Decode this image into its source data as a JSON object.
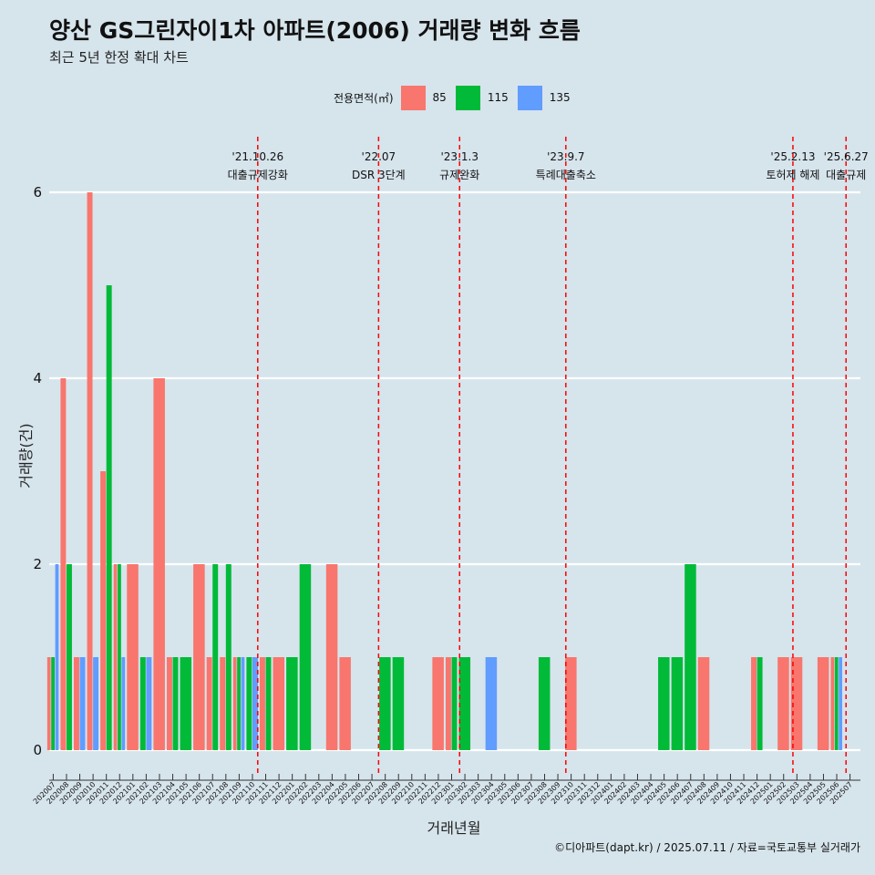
{
  "header": {
    "title": "양산 GS그린자이1차 아파트(2006) 거래량 변화 흐름",
    "subtitle": "최근 5년 한정 확대 차트"
  },
  "legend": {
    "title": "전용면적(㎡)",
    "items": [
      {
        "label": "85",
        "color": "#F8766D"
      },
      {
        "label": "115",
        "color": "#00BA38"
      },
      {
        "label": "135",
        "color": "#619CFF"
      }
    ]
  },
  "caption": "©디아파트(dapt.kr) / 2025.07.11 / 자료=국토교통부 실거래가",
  "chart_data": {
    "type": "bar",
    "xlabel": "거래년월",
    "ylabel": "거래량(건)",
    "ylim": [
      0,
      6.2
    ],
    "yticks": [
      0,
      2,
      4,
      6
    ],
    "grid": "horizontal",
    "legend_position": "top",
    "categories": [
      "202007",
      "202008",
      "202009",
      "202010",
      "202011",
      "202012",
      "202101",
      "202102",
      "202103",
      "202104",
      "202105",
      "202106",
      "202107",
      "202108",
      "202109",
      "202110",
      "202111",
      "202112",
      "202201",
      "202202",
      "202203",
      "202204",
      "202205",
      "202206",
      "202207",
      "202208",
      "202209",
      "202210",
      "202211",
      "202212",
      "202301",
      "202302",
      "202303",
      "202304",
      "202305",
      "202306",
      "202307",
      "202308",
      "202309",
      "202310",
      "202311",
      "202312",
      "202401",
      "202402",
      "202403",
      "202404",
      "202405",
      "202406",
      "202407",
      "202408",
      "202409",
      "202410",
      "202411",
      "202412",
      "202501",
      "202502",
      "202503",
      "202504",
      "202505",
      "202506",
      "202507"
    ],
    "series": [
      {
        "name": "85",
        "color": "#F8766D",
        "values": [
          1,
          4,
          1,
          6,
          3,
          2,
          2,
          0,
          4,
          1,
          0,
          2,
          1,
          1,
          1,
          0,
          1,
          1,
          0,
          0,
          0,
          2,
          1,
          0,
          0,
          0,
          0,
          0,
          0,
          1,
          1,
          0,
          0,
          0,
          0,
          0,
          0,
          0,
          0,
          1,
          0,
          0,
          0,
          0,
          0,
          0,
          0,
          0,
          0,
          1,
          0,
          0,
          0,
          1,
          0,
          1,
          1,
          0,
          1,
          1,
          0
        ]
      },
      {
        "name": "115",
        "color": "#00BA38",
        "values": [
          1,
          2,
          0,
          0,
          5,
          2,
          0,
          1,
          0,
          1,
          1,
          0,
          2,
          2,
          1,
          1,
          1,
          0,
          1,
          2,
          0,
          0,
          0,
          0,
          0,
          1,
          1,
          0,
          0,
          0,
          1,
          1,
          0,
          0,
          0,
          0,
          0,
          1,
          0,
          0,
          0,
          0,
          0,
          0,
          0,
          0,
          1,
          1,
          2,
          0,
          0,
          0,
          0,
          1,
          0,
          0,
          0,
          0,
          0,
          1,
          0
        ]
      },
      {
        "name": "135",
        "color": "#619CFF",
        "values": [
          2,
          0,
          1,
          1,
          0,
          1,
          0,
          1,
          0,
          0,
          0,
          0,
          0,
          0,
          1,
          1,
          0,
          0,
          0,
          0,
          0,
          0,
          0,
          0,
          0,
          0,
          0,
          0,
          0,
          0,
          0,
          0,
          0,
          1,
          0,
          0,
          0,
          0,
          0,
          0,
          0,
          0,
          0,
          0,
          0,
          0,
          0,
          0,
          0,
          0,
          0,
          0,
          0,
          0,
          0,
          0,
          0,
          0,
          0,
          1,
          0
        ]
      }
    ],
    "events": [
      {
        "date": "'21.10.26",
        "label": "대출규제강화",
        "x": 15.4
      },
      {
        "date": "'22.07",
        "label": "DSR 3단계",
        "x": 24.5
      },
      {
        "date": "'23.1.3",
        "label": "규제완화",
        "x": 30.6
      },
      {
        "date": "'23.9.7",
        "label": "특례대출축소",
        "x": 38.6
      },
      {
        "date": "'25.2.13",
        "label": "토허제 해제",
        "x": 55.7
      },
      {
        "date": "'25.6.27",
        "label": "대출규제",
        "x": 59.7
      }
    ]
  }
}
